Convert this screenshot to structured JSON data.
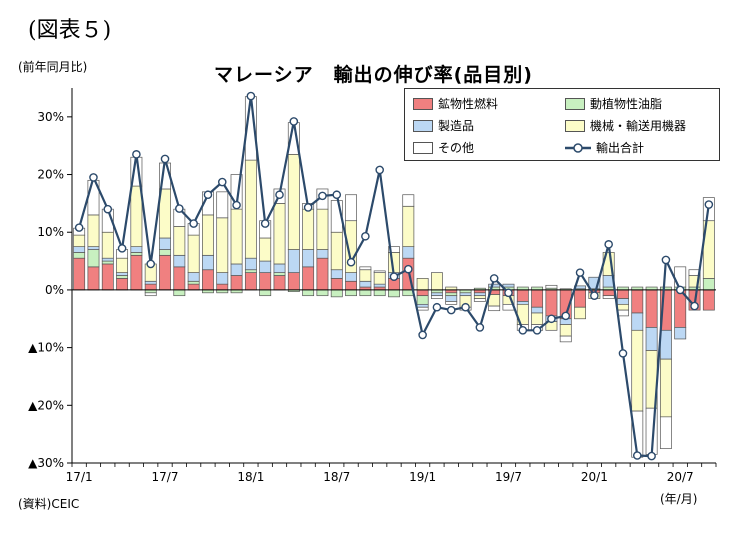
{
  "figure_label": "(図表５)",
  "unit_label": "(前年同月比)",
  "source_label": "(資料)CEIC",
  "x_unit_label": "(年/月)",
  "colors": {
    "mineral_fuels": "#f08080",
    "animal_veg_oils": "#c8f0c0",
    "manufactured": "#bcd8f4",
    "machinery": "#fcfcc8",
    "other": "#ffffff",
    "total_line": "#2c4a6b"
  },
  "chart_data": {
    "type": "bar",
    "title": "マレーシア　輸出の伸び率(品目別)",
    "xlabel": "",
    "ylabel": "",
    "ylim": [
      -30,
      35
    ],
    "y_ticks": [
      {
        "value": 30,
        "label": "30%"
      },
      {
        "value": 20,
        "label": "20%"
      },
      {
        "value": 10,
        "label": "10%"
      },
      {
        "value": 0,
        "label": "0%"
      },
      {
        "value": -10,
        "label": "▲10%"
      },
      {
        "value": -20,
        "label": "▲20%"
      },
      {
        "value": -30,
        "label": "▲30%"
      }
    ],
    "x_ticks": [
      {
        "index": 0,
        "label": "17/1"
      },
      {
        "index": 6,
        "label": "17/7"
      },
      {
        "index": 12,
        "label": "18/1"
      },
      {
        "index": 18,
        "label": "18/7"
      },
      {
        "index": 24,
        "label": "19/1"
      },
      {
        "index": 30,
        "label": "19/7"
      },
      {
        "index": 36,
        "label": "20/1"
      },
      {
        "index": 42,
        "label": "20/7"
      }
    ],
    "categories": [
      "17/1",
      "17/2",
      "17/3",
      "17/4",
      "17/5",
      "17/6",
      "17/7",
      "17/8",
      "17/9",
      "17/10",
      "17/11",
      "17/12",
      "18/1",
      "18/2",
      "18/3",
      "18/4",
      "18/5",
      "18/6",
      "18/7",
      "18/8",
      "18/9",
      "18/10",
      "18/11",
      "18/12",
      "19/1",
      "19/2",
      "19/3",
      "19/4",
      "19/5",
      "19/6",
      "19/7",
      "19/8",
      "19/9",
      "19/10",
      "19/11",
      "19/12",
      "20/1",
      "20/2",
      "20/3",
      "20/4",
      "20/5",
      "20/6",
      "20/7",
      "20/8",
      "20/9"
    ],
    "legend_position": "top-right",
    "series": [
      {
        "name": "鉱物性燃料",
        "color_key": "mineral_fuels",
        "values": [
          5.5,
          4,
          4.5,
          2,
          6,
          1,
          6,
          4,
          1,
          3.5,
          1,
          2.5,
          3,
          3,
          2.5,
          3,
          4,
          5.5,
          2,
          1.5,
          0.5,
          0.5,
          2,
          5.5,
          -1,
          0,
          -0.5,
          0,
          -0.5,
          -0.8,
          -1,
          -2,
          -3,
          -4.5,
          -5,
          -3,
          -0.5,
          -1,
          -1.5,
          -4,
          -6.5,
          -7,
          -6.5,
          -3.5,
          -3.5
        ]
      },
      {
        "name": "動植物性油脂",
        "color_key": "animal_veg_oils",
        "values": [
          1,
          3,
          0.5,
          0.5,
          0.5,
          -0.5,
          1,
          -1,
          0.5,
          -0.5,
          -0.5,
          -0.5,
          0.5,
          -1,
          0.5,
          -0.3,
          -1,
          -1,
          -1.2,
          -1,
          -1,
          -1,
          -1.2,
          -1,
          -1.5,
          -0.5,
          -0.5,
          -0.5,
          0.3,
          0.5,
          0.5,
          0.5,
          0.5,
          0.3,
          0.2,
          0.2,
          0.2,
          0.5,
          0.5,
          0.5,
          0.5,
          0.5,
          0.5,
          0.5,
          2
        ]
      },
      {
        "name": "製造品",
        "color_key": "manufactured",
        "values": [
          1,
          0.5,
          0.5,
          0.5,
          1,
          0.5,
          2,
          2,
          1.5,
          2.5,
          2,
          2,
          2,
          2,
          1.5,
          4,
          3,
          1.5,
          1.5,
          1.5,
          1,
          0.5,
          1,
          2,
          -0.5,
          -0.5,
          -1,
          -0.5,
          -0.5,
          0.5,
          0.5,
          -0.5,
          -1,
          -1,
          -1,
          0.5,
          2,
          2,
          -1,
          -3,
          -4,
          -5,
          -2,
          0,
          0
        ]
      },
      {
        "name": "機械・輸送用機器",
        "color_key": "machinery",
        "values": [
          2,
          5.5,
          4.5,
          2.5,
          10.5,
          3,
          8.5,
          5,
          6.5,
          7,
          9.5,
          9.5,
          17,
          4,
          10.5,
          16.5,
          7,
          7,
          6.5,
          9,
          2,
          2,
          3.5,
          7,
          2,
          3,
          0.5,
          -2,
          -0.5,
          -2,
          -1.5,
          -3.5,
          -2,
          -1.5,
          -2,
          -2,
          -1,
          4,
          -1,
          -14,
          -10,
          -10,
          0,
          2,
          10
        ]
      },
      {
        "name": "その他",
        "color_key": "other",
        "values": [
          1.2,
          6,
          4,
          1.5,
          5,
          -0.5,
          4.5,
          3,
          2,
          4,
          4.5,
          6,
          11,
          3,
          2.5,
          5.5,
          1,
          3.5,
          5.5,
          4.5,
          0.5,
          0.3,
          1,
          2,
          -0.5,
          -0.5,
          -0.5,
          -0.5,
          -0.5,
          -0.8,
          -1,
          -1,
          -1,
          0.5,
          -1,
          0,
          0,
          -0.5,
          -1,
          -8,
          -8,
          -5.5,
          3.5,
          1,
          4
        ]
      }
    ],
    "total": {
      "name": "輸出合計",
      "values": [
        10.8,
        19.5,
        14,
        7.2,
        23.5,
        4.5,
        22.7,
        14.1,
        11.5,
        16.5,
        18.7,
        14.7,
        33.6,
        11.5,
        16.5,
        29.2,
        14.3,
        16.3,
        16.5,
        4.8,
        9.3,
        20.8,
        2.3,
        3.6,
        -7.8,
        -3,
        -3.5,
        -3,
        -6.5,
        2,
        -0.5,
        -7,
        -7,
        -5,
        -4.5,
        3,
        -1,
        7.9,
        -11,
        -28.7,
        -28.8,
        5.2,
        0,
        -2.8,
        14.8
      ]
    }
  }
}
